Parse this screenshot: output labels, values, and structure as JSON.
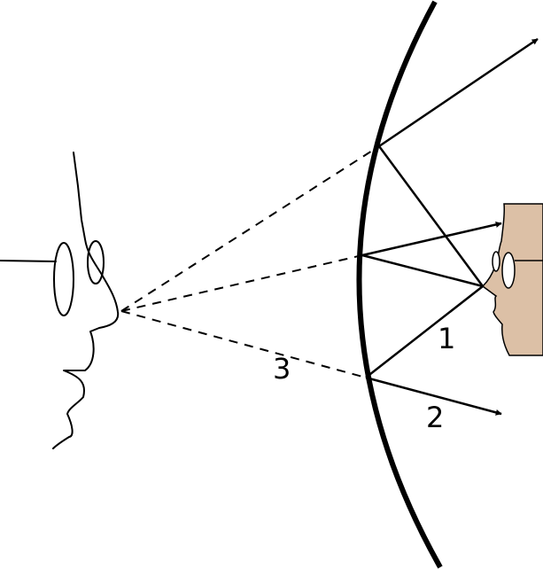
{
  "colors": {
    "background": "#ffffff",
    "ink": "#000000",
    "reflected_face_skin": "#dcc0a6"
  },
  "labels": {
    "ray_1": "1",
    "ray_2": "2",
    "ray_3": "3"
  }
}
